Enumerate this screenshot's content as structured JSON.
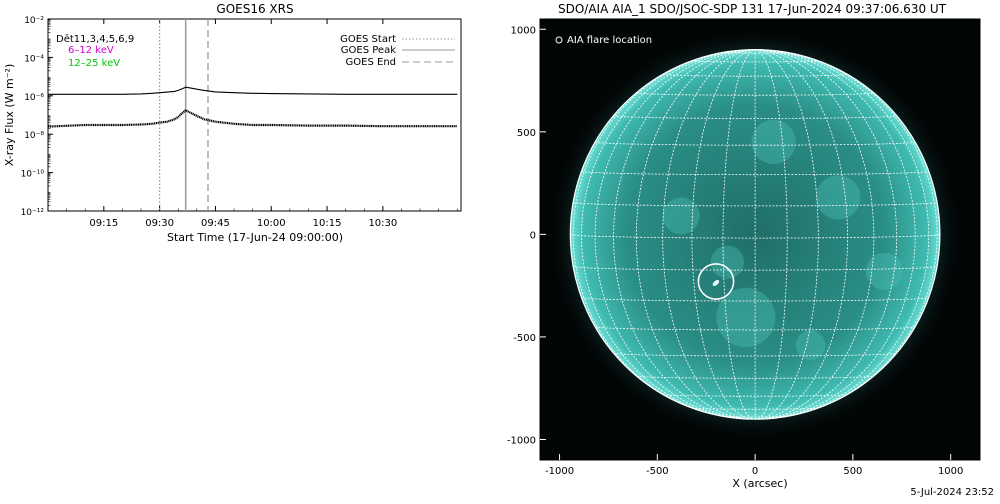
{
  "left_panel": {
    "title": "GOES16 XRS",
    "detector_label": "Dēt11,3,4,5,6,9",
    "band_labels": [
      {
        "text": "6–12 keV",
        "color": "#d000d0"
      },
      {
        "text": "12–25 keV",
        "color": "#00c800"
      }
    ],
    "legend": [
      {
        "label": "GOES Start",
        "style": "dotted"
      },
      {
        "label": "GOES Peak",
        "style": "solid"
      },
      {
        "label": "GOES End",
        "style": "dashed"
      }
    ]
  },
  "right_panel": {
    "title": "SDO/AIA AIA_1 SDO/JSOC-SDP 131 17-Jun-2024 09:37:06.630 UT",
    "legend_label": "AIA flare location",
    "image_colors": {
      "disk": "#2a8e86",
      "background": "#020505",
      "grid": "#ffffff"
    }
  },
  "footer": {
    "timestamp": "5-Jul-2024 23:52"
  },
  "chart_data": [
    {
      "type": "line",
      "title": "GOES16 XRS",
      "xlabel": "Start Time (17-Jun-24 09:00:00)",
      "ylabel": "X-ray Flux (W m⁻²)",
      "xlim": [
        "09:00",
        "10:51"
      ],
      "ylim": [
        1e-12,
        0.01
      ],
      "yscale": "log",
      "x_ticks": [
        "09:15",
        "09:30",
        "09:45",
        "10:00",
        "10:15",
        "10:30"
      ],
      "y_ticks": [
        "10⁻¹²",
        "10⁻¹⁰",
        "10⁻⁸",
        "10⁻⁶",
        "10⁻⁴",
        "10⁻²"
      ],
      "markers": [
        {
          "name": "GOES Start",
          "time": "09:30",
          "style": "dotted",
          "color": "#9a9a9a"
        },
        {
          "name": "GOES Peak",
          "time": "09:37",
          "style": "solid",
          "color": "#9a9a9a"
        },
        {
          "name": "GOES End",
          "time": "09:43",
          "style": "dashed",
          "color": "#9a9a9a"
        }
      ],
      "series": [
        {
          "name": "6–12 keV",
          "color": "#000000",
          "x": [
            "09:00",
            "09:10",
            "09:20",
            "09:25",
            "09:28",
            "09:30",
            "09:32",
            "09:34",
            "09:35",
            "09:36",
            "09:37",
            "09:38",
            "09:40",
            "09:42",
            "09:45",
            "09:50",
            "09:55",
            "10:00",
            "10:10",
            "10:20",
            "10:30",
            "10:40",
            "10:50"
          ],
          "y": [
            1.2e-06,
            1.2e-06,
            1.2e-06,
            1.25e-06,
            1.35e-06,
            1.45e-06,
            1.55e-06,
            1.7e-06,
            1.9e-06,
            2.3e-06,
            2.8e-06,
            2.6e-06,
            2.2e-06,
            1.9e-06,
            1.6e-06,
            1.45e-06,
            1.35e-06,
            1.3e-06,
            1.25e-06,
            1.2e-06,
            1.2e-06,
            1.2e-06,
            1.2e-06
          ]
        },
        {
          "name": "12–25 keV",
          "color": "#000000",
          "x": [
            "09:00",
            "09:10",
            "09:20",
            "09:25",
            "09:28",
            "09:30",
            "09:32",
            "09:34",
            "09:35",
            "09:36",
            "09:37",
            "09:38",
            "09:40",
            "09:42",
            "09:45",
            "09:50",
            "09:55",
            "10:00",
            "10:10",
            "10:20",
            "10:30",
            "10:40",
            "10:50"
          ],
          "y": [
            2.5e-08,
            3e-08,
            3e-08,
            3.2e-08,
            3.5e-08,
            4e-08,
            4.5e-08,
            6e-08,
            8e-08,
            1.2e-07,
            1.8e-07,
            1.4e-07,
            9e-08,
            6e-08,
            4.5e-08,
            3.5e-08,
            3e-08,
            3e-08,
            2.8e-08,
            2.8e-08,
            2.6e-08,
            2.6e-08,
            2.6e-08
          ]
        }
      ]
    },
    {
      "type": "image",
      "title": "SDO/AIA AIA_1 SDO/JSOC-SDP 131 17-Jun-2024 09:37:06.630 UT",
      "xlabel": "X (arcsec)",
      "ylabel": "",
      "xlim": [
        -1100,
        1150
      ],
      "ylim": [
        -1100,
        1050
      ],
      "x_ticks": [
        -1000,
        -500,
        0,
        500,
        1000
      ],
      "y_ticks": [
        -1000,
        -500,
        0,
        500,
        1000
      ],
      "solar_radius_arcsec": 945,
      "grid_spacing_deg": 10,
      "flare_location": {
        "x": -200,
        "y": -230,
        "radius": 90
      }
    }
  ]
}
